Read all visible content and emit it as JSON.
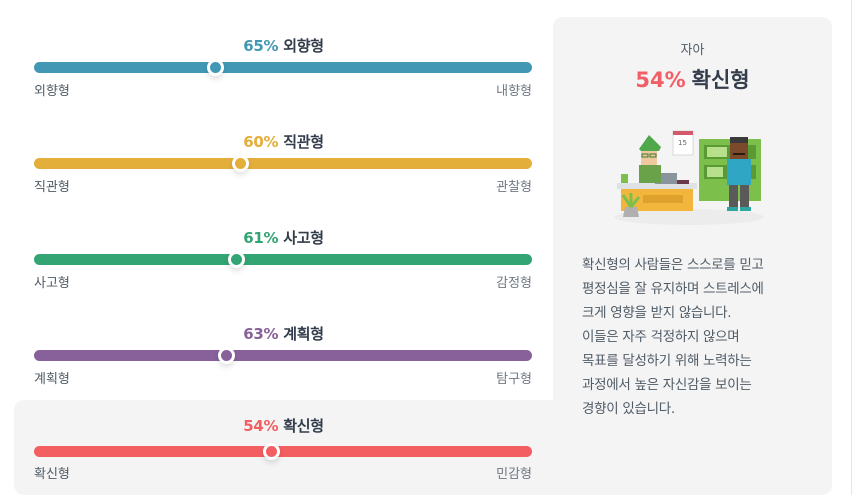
{
  "traits": [
    {
      "pct": "65%",
      "name": "외향형",
      "left_label": "외향형",
      "right_label": "내향형",
      "value": 65,
      "knob_pos": 36.3,
      "color": "#4298b4"
    },
    {
      "pct": "60%",
      "name": "직관형",
      "left_label": "직관형",
      "right_label": "관찰형",
      "value": 60,
      "knob_pos": 41.4,
      "color": "#e4ae3a"
    },
    {
      "pct": "61%",
      "name": "사고형",
      "left_label": "사고형",
      "right_label": "감정형",
      "value": 61,
      "knob_pos": 40.6,
      "color": "#33a474"
    },
    {
      "pct": "63%",
      "name": "계획형",
      "left_label": "계획형",
      "right_label": "탐구형",
      "value": 63,
      "knob_pos": 38.5,
      "color": "#88619a"
    },
    {
      "pct": "54%",
      "name": "확신형",
      "left_label": "확신형",
      "right_label": "민감형",
      "value": 54,
      "knob_pos": 47.6,
      "color": "#f25e62",
      "active": true
    }
  ],
  "panel": {
    "category": "자아",
    "pct": "54%",
    "name": "확신형",
    "illustration": "office-meeting-illustration",
    "description": [
      "확신형의 사람들은 스스로를 믿고",
      "평정심을 잘 유지하며 스트레스에",
      "크게 영향을 받지 않습니다.",
      "이들은 자주 걱정하지 않으며",
      "목표를 달성하기 위해 노력하는",
      "과정에서 높은 자신감을 보이는",
      "경향이 있습니다."
    ]
  }
}
